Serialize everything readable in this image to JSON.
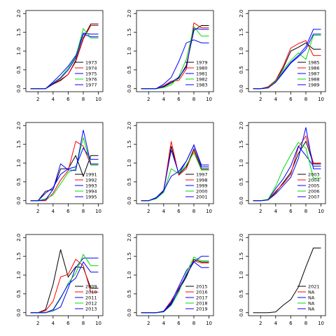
{
  "chart_data": {
    "type": "line",
    "grid": false,
    "legend_position": "bottom-right",
    "colors": [
      "#000000",
      "#ff0000",
      "#0000ff",
      "#00dd00",
      "#0000ff"
    ],
    "x": [
      1,
      2,
      3,
      4,
      5,
      6,
      7,
      8,
      9,
      10
    ],
    "xticks": [
      "2",
      "4",
      "6",
      "8",
      "10"
    ],
    "yticks": [
      "0.0",
      "0.5",
      "1.0",
      "1.5",
      "2.0"
    ],
    "xlim": [
      0.4,
      10.6
    ],
    "ylim": [
      -0.08,
      2.08
    ],
    "panels": [
      {
        "series": [
          {
            "name": "1973",
            "values": [
              0,
              0,
              0,
              0.12,
              0.22,
              0.38,
              0.75,
              1.35,
              1.72,
              1.72
            ]
          },
          {
            "name": "1974",
            "values": [
              0,
              0,
              0,
              0.13,
              0.24,
              0.38,
              0.72,
              1.32,
              1.68,
              1.68
            ]
          },
          {
            "name": "1975",
            "values": [
              0,
              0,
              0,
              0.18,
              0.38,
              0.6,
              0.88,
              1.48,
              1.45,
              1.45
            ]
          },
          {
            "name": "1976",
            "values": [
              0,
              0,
              0,
              0.15,
              0.3,
              0.55,
              0.85,
              1.6,
              1.35,
              1.35
            ]
          },
          {
            "name": "1977",
            "values": [
              0,
              0,
              0,
              0.14,
              0.28,
              0.5,
              0.82,
              1.45,
              1.38,
              1.38
            ]
          }
        ]
      },
      {
        "series": [
          {
            "name": "1979",
            "values": [
              0,
              0,
              0,
              0.05,
              0.15,
              0.28,
              0.62,
              1.55,
              1.68,
              1.68
            ]
          },
          {
            "name": "1980",
            "values": [
              0,
              0,
              0,
              0.08,
              0.2,
              0.22,
              0.52,
              1.75,
              1.62,
              1.62
            ]
          },
          {
            "name": "1981",
            "values": [
              0,
              0,
              0,
              0.12,
              0.3,
              0.72,
              1.22,
              1.3,
              1.22,
              1.22
            ]
          },
          {
            "name": "1982",
            "values": [
              0,
              0,
              0,
              0.03,
              0.1,
              0.32,
              0.78,
              1.65,
              1.4,
              1.4
            ]
          },
          {
            "name": "1983",
            "values": [
              0,
              0,
              0,
              0.06,
              0.18,
              0.3,
              0.58,
              1.6,
              1.58,
              1.58
            ]
          }
        ]
      },
      {
        "series": [
          {
            "name": "1985",
            "values": [
              0,
              0,
              0.05,
              0.22,
              0.55,
              1.0,
              1.1,
              1.22,
              1.05,
              1.05
            ]
          },
          {
            "name": "1986",
            "values": [
              0,
              0,
              0.05,
              0.22,
              0.6,
              1.08,
              1.2,
              1.28,
              0.88,
              0.88
            ]
          },
          {
            "name": "1987",
            "values": [
              0,
              0,
              0.02,
              0.18,
              0.45,
              0.7,
              0.88,
              1.12,
              1.58,
              1.58
            ]
          },
          {
            "name": "1988",
            "values": [
              0,
              0,
              0.03,
              0.2,
              0.5,
              0.75,
              0.95,
              0.78,
              1.42,
              1.42
            ]
          },
          {
            "name": "1989",
            "values": [
              0,
              0,
              0.02,
              0.17,
              0.42,
              0.68,
              0.85,
              1.05,
              1.45,
              1.45
            ]
          }
        ]
      },
      {
        "series": [
          {
            "name": "1991",
            "values": [
              0,
              0,
              0.25,
              0.3,
              0.85,
              0.85,
              1.2,
              0.65,
              1.2,
              1.2
            ]
          },
          {
            "name": "1992",
            "values": [
              0,
              0,
              0,
              0.2,
              0.55,
              0.8,
              1.58,
              1.45,
              0.95,
              0.95
            ]
          },
          {
            "name": "1993",
            "values": [
              0,
              0,
              0.2,
              0.35,
              0.7,
              0.85,
              0.9,
              1.4,
              1.1,
              1.1
            ]
          },
          {
            "name": "1994",
            "values": [
              0,
              0,
              0.05,
              0.15,
              0.45,
              0.75,
              0.85,
              1.68,
              0.95,
              0.95
            ]
          },
          {
            "name": "1995",
            "values": [
              0,
              0,
              0.02,
              0.3,
              0.98,
              0.82,
              0.8,
              1.88,
              0.98,
              0.98
            ]
          }
        ]
      },
      {
        "series": [
          {
            "name": "1997",
            "values": [
              0,
              0,
              0.08,
              0.25,
              1.45,
              0.7,
              0.9,
              1.38,
              0.85,
              0.85
            ]
          },
          {
            "name": "1998",
            "values": [
              0,
              0,
              0.06,
              0.25,
              1.58,
              0.68,
              0.85,
              1.35,
              0.82,
              0.82
            ]
          },
          {
            "name": "1999",
            "values": [
              0,
              0,
              0.08,
              0.28,
              1.35,
              0.72,
              1.05,
              1.48,
              0.9,
              0.9
            ]
          },
          {
            "name": "2000",
            "values": [
              0,
              0,
              0.05,
              0.22,
              0.85,
              0.72,
              0.95,
              1.28,
              0.82,
              0.82
            ]
          },
          {
            "name": "2001",
            "values": [
              0,
              0,
              0.07,
              0.26,
              0.65,
              0.78,
              1.05,
              1.48,
              0.95,
              0.95
            ]
          }
        ]
      },
      {
        "series": [
          {
            "name": "2003",
            "values": [
              0,
              0,
              0.02,
              0.22,
              0.48,
              0.75,
              1.25,
              1.58,
              0.98,
              0.98
            ]
          },
          {
            "name": "2004",
            "values": [
              0,
              0,
              0.02,
              0.25,
              0.45,
              0.7,
              1.42,
              1.72,
              1.0,
              1.0
            ]
          },
          {
            "name": "2005",
            "values": [
              0,
              0,
              0.03,
              0.32,
              0.58,
              0.92,
              1.45,
              1.2,
              0.92,
              0.92
            ]
          },
          {
            "name": "2006",
            "values": [
              0,
              0,
              0.04,
              0.38,
              0.85,
              1.22,
              1.55,
              1.4,
              0.6,
              0.6
            ]
          },
          {
            "name": "2007",
            "values": [
              0,
              0,
              0.02,
              0.18,
              0.4,
              0.62,
              1.12,
              1.95,
              0.85,
              0.85
            ]
          }
        ]
      },
      {
        "series": [
          {
            "name": "2009",
            "values": [
              0,
              0,
              0.08,
              0.75,
              1.68,
              0.95,
              1.22,
              1.2,
              0.65,
              0.65
            ]
          },
          {
            "name": "2010",
            "values": [
              0,
              0,
              0.05,
              0.3,
              0.95,
              1.02,
              1.42,
              1.25,
              0.55,
              0.55
            ]
          },
          {
            "name": "2011",
            "values": [
              0,
              0,
              0,
              0.05,
              0.15,
              0.65,
              1.2,
              1.45,
              1.45,
              1.45
            ]
          },
          {
            "name": "2012",
            "values": [
              0,
              0,
              0,
              0.06,
              0.38,
              0.78,
              1.05,
              1.55,
              1.25,
              1.25
            ]
          },
          {
            "name": "2013",
            "values": [
              0,
              0,
              0,
              0.08,
              0.4,
              0.75,
              0.92,
              1.35,
              1.08,
              1.08
            ]
          }
        ]
      },
      {
        "series": [
          {
            "name": "2015",
            "values": [
              0,
              0,
              0,
              0.03,
              0.25,
              0.6,
              0.95,
              1.42,
              1.35,
              1.35
            ]
          },
          {
            "name": "2016",
            "values": [
              0,
              0,
              0,
              0.04,
              0.32,
              0.65,
              1.0,
              1.38,
              1.32,
              1.32
            ]
          },
          {
            "name": "2017",
            "values": [
              0,
              0,
              0,
              0.04,
              0.28,
              0.7,
              1.12,
              1.35,
              1.2,
              1.2
            ]
          },
          {
            "name": "2018",
            "values": [
              0,
              0,
              0,
              0.02,
              0.2,
              0.55,
              1.05,
              1.48,
              1.38,
              1.38
            ]
          },
          {
            "name": "2019",
            "values": [
              0,
              0,
              0,
              0.03,
              0.22,
              0.62,
              1.0,
              1.35,
              1.5,
              1.5
            ]
          }
        ]
      },
      {
        "series": [
          {
            "name": "2021",
            "values": [
              0,
              0,
              0,
              0.02,
              0.2,
              0.35,
              0.68,
              1.22,
              1.72,
              1.72
            ]
          },
          {
            "name": "NA",
            "values": null
          },
          {
            "name": "NA",
            "values": null
          },
          {
            "name": "NA",
            "values": null
          },
          {
            "name": "NA",
            "values": null
          }
        ]
      }
    ]
  }
}
